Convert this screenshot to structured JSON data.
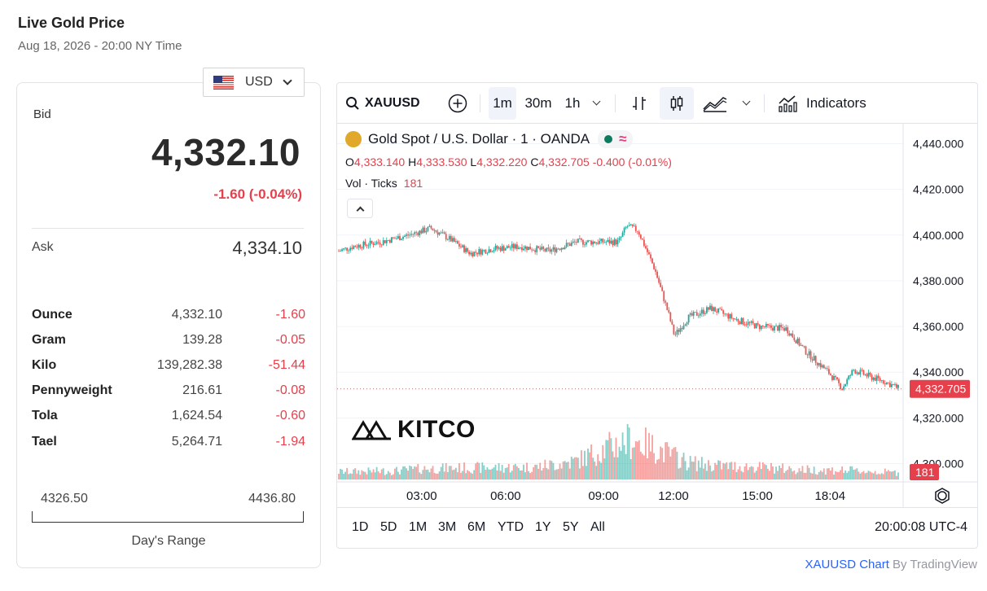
{
  "header": {
    "title": "Live Gold Price",
    "timestamp": "Aug 18, 2026 - 20:00 NY Time"
  },
  "currency": {
    "selected": "USD",
    "flag_icon": "us-flag-icon"
  },
  "quote": {
    "bid_label": "Bid",
    "bid": "4,332.10",
    "change": "-1.60 (-0.04%)",
    "ask_label": "Ask",
    "ask": "4,334.10",
    "units": [
      {
        "name": "Ounce",
        "value": "4,332.10",
        "change": "-1.60"
      },
      {
        "name": "Gram",
        "value": "139.28",
        "change": "-0.05"
      },
      {
        "name": "Kilo",
        "value": "139,282.38",
        "change": "-51.44"
      },
      {
        "name": "Pennyweight",
        "value": "216.61",
        "change": "-0.08"
      },
      {
        "name": "Tola",
        "value": "1,624.54",
        "change": "-0.60"
      },
      {
        "name": "Tael",
        "value": "5,264.71",
        "change": "-1.94"
      }
    ],
    "range_low": "4326.50",
    "range_high": "4436.80",
    "range_label": "Day's Range"
  },
  "toolbar": {
    "symbol": "XAUUSD",
    "intervals": [
      "1m",
      "30m",
      "1h"
    ],
    "active_interval": "1m",
    "indicators_label": "Indicators"
  },
  "legend": {
    "title": "Gold Spot / U.S. Dollar · 1 · OANDA",
    "o_label": "O",
    "o": "4,333.140",
    "h_label": "H",
    "h": "4,333.530",
    "l_label": "L",
    "l": "4,332.220",
    "c_label": "C",
    "c": "4,332.705",
    "chg": "-0.400 (-0.01%)",
    "vol_label": "Vol · Ticks",
    "vol": "181"
  },
  "watermark": "KITCO",
  "ranges": [
    "1D",
    "5D",
    "1M",
    "3M",
    "6M",
    "YTD",
    "1Y",
    "5Y",
    "All"
  ],
  "clock": "20:00:08 UTC-4",
  "attribution": {
    "link": "XAUUSD Chart",
    "suffix": " By TradingView"
  },
  "colors": {
    "up": "#26a69a",
    "down": "#ef5350",
    "change": "#e5404c",
    "accent": "#2962ff"
  },
  "chart_data": {
    "type": "candlestick",
    "x_ticks": [
      "03:00",
      "06:00",
      "09:00",
      "12:00",
      "15:00",
      "18:04"
    ],
    "y_ticks": [
      "4,440.000",
      "4,420.000",
      "4,400.000",
      "4,380.000",
      "4,360.000",
      "4,340.000",
      "4,320.000",
      "4,300.000"
    ],
    "ylim": [
      4292,
      4448
    ],
    "last_price": "4,332.705",
    "last_volume": "181",
    "price_path": [
      [
        0,
        4393
      ],
      [
        0.5,
        4395
      ],
      [
        1.5,
        4397
      ],
      [
        2.5,
        4400
      ],
      [
        3.3,
        4403
      ],
      [
        4.0,
        4398
      ],
      [
        4.7,
        4392
      ],
      [
        5.5,
        4394
      ],
      [
        6.5,
        4395
      ],
      [
        7.5,
        4393
      ],
      [
        8.5,
        4397
      ],
      [
        9.5,
        4397
      ],
      [
        10.0,
        4397
      ],
      [
        10.3,
        4404
      ],
      [
        10.7,
        4402
      ],
      [
        11.3,
        4385
      ],
      [
        11.8,
        4365
      ],
      [
        12.0,
        4356
      ],
      [
        12.5,
        4364
      ],
      [
        13.3,
        4368
      ],
      [
        14.2,
        4363
      ],
      [
        15.0,
        4360
      ],
      [
        16.0,
        4359
      ],
      [
        16.7,
        4349
      ],
      [
        17.5,
        4340
      ],
      [
        18.0,
        4333
      ],
      [
        18.4,
        4341
      ],
      [
        19.0,
        4338
      ],
      [
        19.5,
        4336
      ],
      [
        20.0,
        4333
      ]
    ],
    "volume_ticks": [
      [
        0,
        25
      ],
      [
        2,
        28
      ],
      [
        3,
        35
      ],
      [
        5,
        38
      ],
      [
        7,
        40
      ],
      [
        8.5,
        60
      ],
      [
        9.5,
        100
      ],
      [
        10.5,
        130
      ],
      [
        11.5,
        95
      ],
      [
        12.5,
        55
      ],
      [
        13.5,
        45
      ],
      [
        15,
        40
      ],
      [
        16.5,
        32
      ],
      [
        18,
        30
      ],
      [
        20,
        22
      ]
    ]
  }
}
